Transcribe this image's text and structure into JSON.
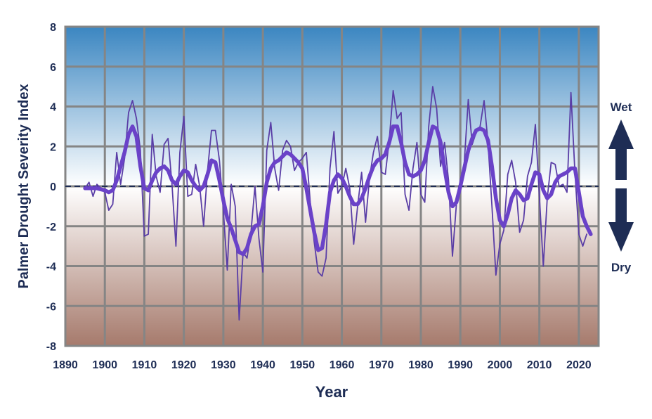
{
  "chart_data": {
    "type": "line",
    "title": "",
    "xlabel": "Year",
    "ylabel": "Palmer Drought Severity Index",
    "xlim": [
      1890,
      2025
    ],
    "ylim": [
      -8,
      8
    ],
    "xticks": [
      1890,
      1900,
      1910,
      1920,
      1930,
      1940,
      1950,
      1960,
      1970,
      1980,
      1990,
      2000,
      2010,
      2020
    ],
    "yticks": [
      -8,
      -6,
      -4,
      -2,
      0,
      2,
      4,
      6,
      8
    ],
    "grid": true,
    "zero_line": "dashed",
    "annotations": {
      "wet": "Wet",
      "dry": "Dry"
    },
    "colors": {
      "annual": "#5a3ea6",
      "smoothed": "#6a42c8",
      "wet_top": "#3b86c1",
      "dry_bottom": "#a67a6c",
      "text": "#1e2d55"
    },
    "start_year": 1895,
    "series": [
      {
        "style": "thin",
        "values": [
          -0.1,
          0.2,
          -0.5,
          0.1,
          -0.1,
          -0.3,
          -1.2,
          -0.9,
          1.7,
          0.1,
          1.4,
          3.7,
          4.3,
          3.4,
          1.8,
          -2.5,
          -2.4,
          2.6,
          0.5,
          -0.3,
          2.1,
          2.4,
          0.1,
          -3.0,
          1.7,
          3.5,
          -0.5,
          -0.4,
          1.1,
          0.0,
          -2.0,
          0.8,
          2.8,
          2.8,
          1.3,
          -1.2,
          -4.2,
          0.1,
          -1.0,
          -6.7,
          -3.3,
          -3.6,
          -2.3,
          0.0,
          -2.6,
          -4.3,
          1.8,
          3.2,
          0.9,
          -0.2,
          1.8,
          2.3,
          2.0,
          0.8,
          1.2,
          1.4,
          1.7,
          -0.8,
          -2.8,
          -4.3,
          -4.5,
          -3.6,
          0.9,
          2.75,
          -0.35,
          0.0,
          0.9,
          -0.1,
          -2.9,
          -1.0,
          0.7,
          -1.8,
          0.4,
          1.7,
          2.5,
          0.7,
          0.6,
          2.3,
          4.8,
          3.4,
          3.7,
          -0.4,
          -1.2,
          0.9,
          2.2,
          -0.4,
          -0.8,
          3.0,
          5.0,
          3.9,
          1.0,
          2.2,
          0.3,
          -3.5,
          -0.9,
          0.3,
          1.2,
          4.35,
          2.1,
          2.7,
          3.0,
          4.3,
          2.2,
          -1.0,
          -4.45,
          -2.9,
          -2.2,
          0.6,
          1.3,
          0.2,
          -2.3,
          -1.7,
          0.5,
          1.2,
          3.1,
          -0.5,
          -4.0,
          -0.6,
          1.2,
          1.1,
          0.0,
          0.1,
          -0.3,
          4.7,
          0.7,
          -2.4,
          -3.0,
          -2.4
        ]
      },
      {
        "style": "thick",
        "values": [
          -0.1,
          -0.1,
          -0.1,
          -0.1,
          -0.15,
          -0.2,
          -0.3,
          -0.2,
          0.3,
          1.0,
          1.7,
          2.6,
          3.0,
          2.5,
          1.0,
          -0.1,
          -0.2,
          0.3,
          0.7,
          0.9,
          1.0,
          0.8,
          0.3,
          0.1,
          0.5,
          0.8,
          0.7,
          0.3,
          0.0,
          -0.2,
          0.0,
          0.6,
          1.3,
          1.2,
          0.3,
          -0.7,
          -1.6,
          -2.1,
          -2.7,
          -3.3,
          -3.4,
          -3.1,
          -2.4,
          -2.0,
          -1.9,
          -1.0,
          0.2,
          0.9,
          1.2,
          1.3,
          1.5,
          1.7,
          1.6,
          1.4,
          1.2,
          0.9,
          -0.1,
          -1.2,
          -2.3,
          -3.2,
          -3.1,
          -1.9,
          -0.3,
          0.3,
          0.6,
          0.4,
          0.0,
          -0.5,
          -0.9,
          -0.9,
          -0.6,
          -0.1,
          0.5,
          1.0,
          1.3,
          1.4,
          1.6,
          2.2,
          3.0,
          3.0,
          2.2,
          1.2,
          0.6,
          0.5,
          0.6,
          0.8,
          1.3,
          2.2,
          3.0,
          2.9,
          2.2,
          0.9,
          -0.3,
          -1.0,
          -0.8,
          0.0,
          0.9,
          1.8,
          2.4,
          2.8,
          2.9,
          2.8,
          2.3,
          1.0,
          -0.6,
          -1.7,
          -2.0,
          -1.4,
          -0.6,
          -0.2,
          -0.4,
          -0.7,
          -0.6,
          0.1,
          0.7,
          0.6,
          -0.2,
          -0.6,
          -0.4,
          0.2,
          0.5,
          0.6,
          0.7,
          0.9,
          0.9,
          -0.3,
          -1.5,
          -2.0,
          -2.4
        ]
      }
    ]
  }
}
